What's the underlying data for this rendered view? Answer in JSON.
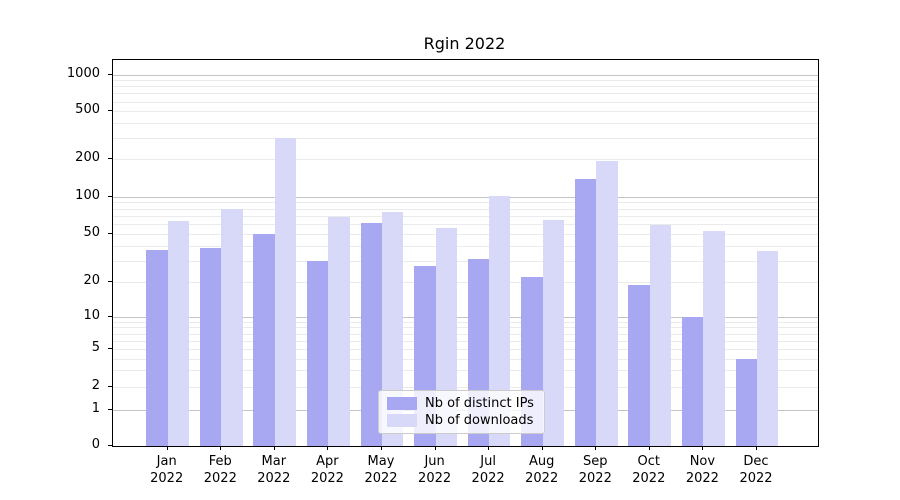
{
  "chart_data": {
    "type": "bar",
    "title": "Rgin 2022",
    "year": "2022",
    "categories": [
      "Jan",
      "Feb",
      "Mar",
      "Apr",
      "May",
      "Jun",
      "Jul",
      "Aug",
      "Sep",
      "Oct",
      "Nov",
      "Dec"
    ],
    "series": [
      {
        "name": "Nb of distinct IPs",
        "color": "#a8a8f2",
        "values": [
          37,
          38,
          50,
          30,
          61,
          27,
          31,
          22,
          140,
          19,
          10,
          4
        ]
      },
      {
        "name": "Nb of downloads",
        "color": "#d8d8f8",
        "values": [
          63,
          80,
          300,
          69,
          75,
          56,
          101,
          65,
          195,
          59,
          53,
          36
        ]
      }
    ],
    "yscale": "symlog",
    "yticks": [
      0,
      1,
      2,
      5,
      10,
      20,
      50,
      100,
      200,
      500,
      1000
    ],
    "ylim": [
      0,
      1300
    ],
    "xlabel": "",
    "ylabel": "",
    "grid": "both",
    "legend_position": "lower center",
    "colors": {
      "major_grid": "#c4c4c4",
      "minor_grid": "#ebebeb",
      "spine": "#000000",
      "background": "#ffffff"
    }
  }
}
